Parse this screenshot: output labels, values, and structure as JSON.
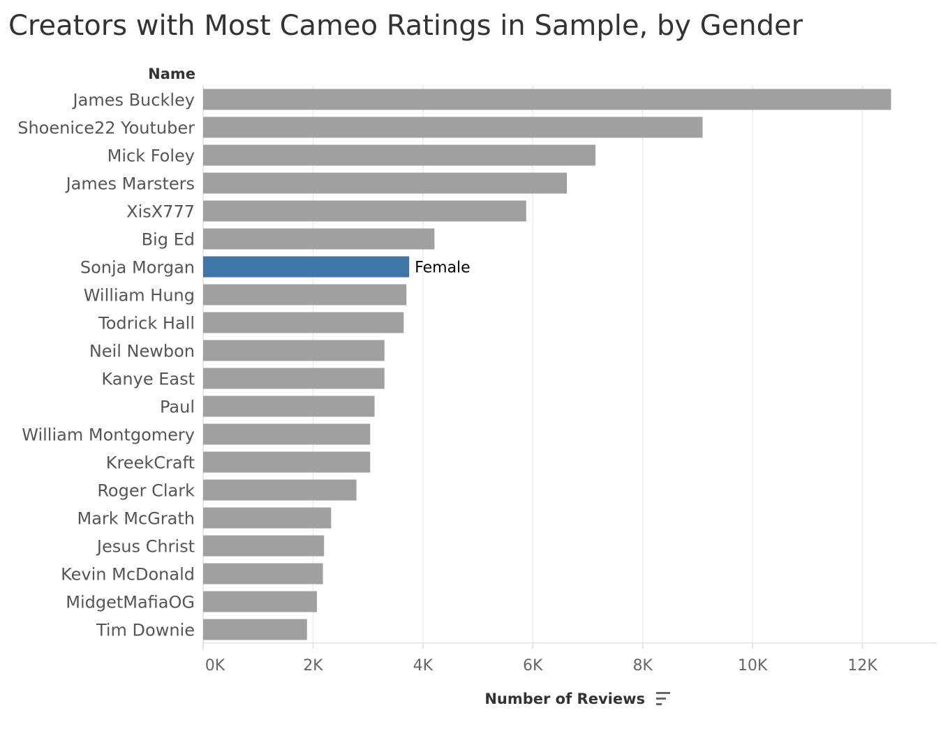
{
  "chart_data": {
    "type": "bar",
    "orientation": "horizontal",
    "title": "Creators with Most Cameo Ratings in Sample, by Gender",
    "category_header": "Name",
    "xlabel": "Number of Reviews",
    "xlim": [
      0,
      13400
    ],
    "x_ticks": [
      0,
      2000,
      4000,
      6000,
      8000,
      10000,
      12000
    ],
    "x_tick_labels": [
      "0K",
      "2K",
      "4K",
      "6K",
      "8K",
      "10K",
      "12K"
    ],
    "grid": "vertical",
    "sort_icon": "sort-descending-icon",
    "colors": {
      "default": "#a0a0a0",
      "highlight": "#3e76a7"
    },
    "categories": [
      "James Buckley",
      "Shoenice22 Youtuber",
      "Mick Foley",
      "James Marsters",
      "XisX777",
      "Big Ed",
      "Sonja Morgan",
      "William Hung",
      "Todrick Hall",
      "Neil Newbon",
      "Kanye East",
      "Paul",
      "William Montgomery",
      "KreekCraft",
      "Roger Clark",
      "Mark McGrath",
      "Jesus Christ",
      "Kevin McDonald",
      "MidgetMafiaOG",
      "Tim Downie"
    ],
    "values": [
      12520,
      9090,
      7140,
      6620,
      5880,
      4210,
      3750,
      3700,
      3650,
      3300,
      3300,
      3120,
      3040,
      3040,
      2790,
      2330,
      2200,
      2180,
      2070,
      1890
    ],
    "highlight": {
      "index": 6,
      "label": "Female"
    }
  }
}
